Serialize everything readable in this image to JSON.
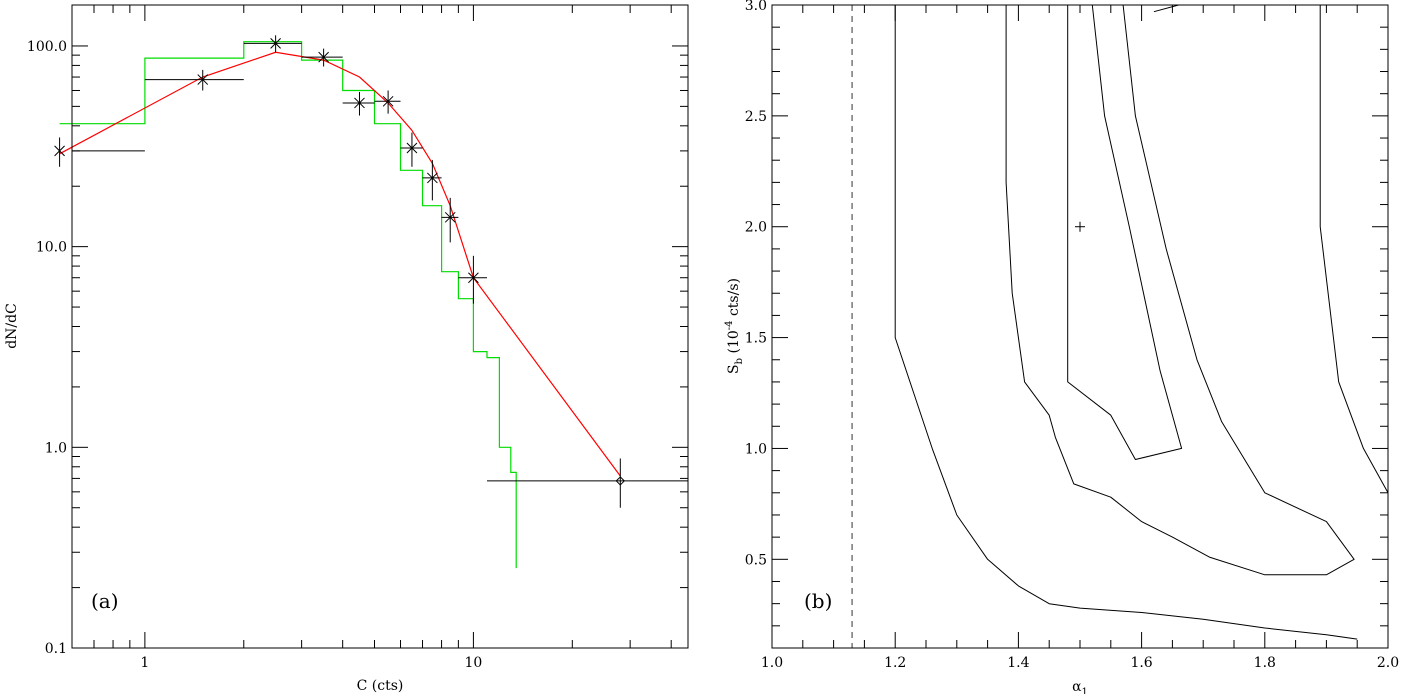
{
  "chart_data": [
    {
      "type": "line",
      "panel_label": "(a)",
      "xlabel": "C (cts)",
      "ylabel": "dN/dC",
      "xscale": "log",
      "yscale": "log",
      "xlim": [
        0.6,
        45
      ],
      "ylim": [
        0.1,
        160
      ],
      "xticks": [
        1,
        10
      ],
      "xtick_labels": [
        "1",
        "10"
      ],
      "yticks": [
        0.1,
        1,
        10,
        100
      ],
      "ytick_labels": [
        "0.1",
        "1.0",
        "10.0",
        "100.0"
      ],
      "colors": {
        "model": "#ff0000",
        "histogram": "#00dd00",
        "data": "#000000"
      },
      "data_points": [
        {
          "x": 0.55,
          "y": 30,
          "xlo": 0.5,
          "xhi": 1.0,
          "ylo": 25,
          "yhi": 35,
          "marker": "star"
        },
        {
          "x": 1.5,
          "y": 68,
          "xlo": 1.0,
          "xhi": 2.0,
          "ylo": 60,
          "yhi": 76,
          "marker": "star"
        },
        {
          "x": 2.5,
          "y": 103,
          "xlo": 2.0,
          "xhi": 3.0,
          "ylo": 93,
          "yhi": 113,
          "marker": "star"
        },
        {
          "x": 3.5,
          "y": 88,
          "xlo": 3.0,
          "xhi": 4.0,
          "ylo": 79,
          "yhi": 97,
          "marker": "star"
        },
        {
          "x": 4.5,
          "y": 52,
          "xlo": 4.0,
          "xhi": 5.0,
          "ylo": 45,
          "yhi": 59,
          "marker": "star"
        },
        {
          "x": 5.5,
          "y": 53,
          "xlo": 5.0,
          "xhi": 6.0,
          "ylo": 46,
          "yhi": 60,
          "marker": "star"
        },
        {
          "x": 6.5,
          "y": 31,
          "xlo": 6.0,
          "xhi": 7.0,
          "ylo": 25,
          "yhi": 37,
          "marker": "star"
        },
        {
          "x": 7.5,
          "y": 22,
          "xlo": 7.0,
          "xhi": 8.0,
          "ylo": 17,
          "yhi": 27,
          "marker": "star"
        },
        {
          "x": 8.5,
          "y": 14,
          "xlo": 8.0,
          "xhi": 9.0,
          "ylo": 10.5,
          "yhi": 17.5,
          "marker": "star"
        },
        {
          "x": 10.0,
          "y": 7,
          "xlo": 9.0,
          "xhi": 11.0,
          "ylo": 5.2,
          "yhi": 9.0,
          "marker": "star"
        },
        {
          "x": 28.0,
          "y": 0.68,
          "xlo": 11.0,
          "xhi": 45.0,
          "ylo": 0.5,
          "yhi": 0.88,
          "marker": "diamond"
        }
      ],
      "model_line": {
        "x": [
          0.55,
          1.5,
          2.5,
          3.5,
          4.5,
          5.5,
          6.5,
          7.5,
          8.5,
          10.0,
          28.0
        ],
        "y": [
          29,
          70,
          93,
          85,
          70,
          52,
          38,
          26,
          16,
          7,
          0.72
        ]
      },
      "histogram": {
        "edges": [
          0.55,
          1.0,
          2.0,
          3.0,
          4.0,
          5.0,
          6.0,
          7.0,
          8.0,
          9.0,
          10.0,
          11.0,
          12.0,
          13.0
        ],
        "values": [
          41,
          87,
          105,
          85,
          60,
          41,
          24,
          16,
          7.5,
          5.5,
          3.0,
          2.8,
          1.0,
          0.75
        ],
        "final_drop_x": 13.5,
        "final_drop_y": 0.25
      }
    },
    {
      "type": "contour",
      "panel_label": "(b)",
      "xlabel_base": "α",
      "xlabel_sub": "1",
      "ylabel_base": "S",
      "ylabel_sub": "b",
      "ylabel_paren_open": " (10",
      "ylabel_sup": "-4",
      "ylabel_rest": " cts/s)",
      "xlim": [
        1.0,
        2.0
      ],
      "ylim": [
        0.1,
        3.0
      ],
      "xticks": [
        1.0,
        1.2,
        1.4,
        1.6,
        1.8,
        2.0
      ],
      "xtick_labels": [
        "1.0",
        "1.2",
        "1.4",
        "1.6",
        "1.8",
        "2.0"
      ],
      "yticks": [
        0.5,
        1.0,
        1.5,
        2.0,
        2.5,
        3.0
      ],
      "ytick_labels": [
        "0.5",
        "1.0",
        "1.5",
        "2.0",
        "2.5",
        "3.0"
      ],
      "best_fit": {
        "x": 1.5,
        "y": 2.0
      },
      "dashed_vline_x": 1.13,
      "contours": [
        {
          "name": "inner",
          "points": [
            [
              1.48,
              3.0
            ],
            [
              1.48,
              1.3
            ],
            [
              1.55,
              1.15
            ],
            [
              1.59,
              0.95
            ],
            [
              1.665,
              1.0
            ],
            [
              1.63,
              1.35
            ],
            [
              1.58,
              2.0
            ],
            [
              1.54,
              2.5
            ],
            [
              1.52,
              3.0
            ]
          ]
        },
        {
          "name": "middle",
          "points": [
            [
              1.38,
              3.0
            ],
            [
              1.38,
              2.2
            ],
            [
              1.39,
              1.7
            ],
            [
              1.41,
              1.3
            ],
            [
              1.45,
              1.15
            ],
            [
              1.46,
              1.05
            ],
            [
              1.49,
              0.84
            ],
            [
              1.55,
              0.78
            ],
            [
              1.6,
              0.67
            ],
            [
              1.65,
              0.6
            ],
            [
              1.71,
              0.51
            ],
            [
              1.8,
              0.43
            ],
            [
              1.9,
              0.43
            ],
            [
              1.945,
              0.5
            ],
            [
              1.9,
              0.67
            ],
            [
              1.8,
              0.8
            ],
            [
              1.73,
              1.12
            ],
            [
              1.69,
              1.4
            ],
            [
              1.64,
              1.9
            ],
            [
              1.59,
              2.5
            ],
            [
              1.57,
              3.0
            ]
          ]
        },
        {
          "name": "outer",
          "points": [
            [
              1.2,
              3.0
            ],
            [
              1.2,
              2.5
            ],
            [
              1.2,
              1.5
            ],
            [
              1.23,
              1.25
            ],
            [
              1.26,
              1.0
            ],
            [
              1.3,
              0.7
            ],
            [
              1.35,
              0.5
            ],
            [
              1.4,
              0.38
            ],
            [
              1.45,
              0.3
            ],
            [
              1.5,
              0.28
            ],
            [
              1.6,
              0.26
            ],
            [
              1.7,
              0.23
            ],
            [
              1.8,
              0.19
            ],
            [
              1.9,
              0.16
            ],
            [
              1.95,
              0.14
            ]
          ]
        },
        {
          "name": "right-edge",
          "points": [
            [
              1.89,
              3.0
            ],
            [
              1.89,
              2.0
            ],
            [
              1.92,
              1.3
            ],
            [
              1.96,
              1.0
            ],
            [
              2.0,
              0.8
            ]
          ]
        },
        {
          "name": "top-fragment",
          "points": [
            [
              1.62,
              2.97
            ],
            [
              1.66,
              3.0
            ]
          ]
        }
      ]
    }
  ]
}
